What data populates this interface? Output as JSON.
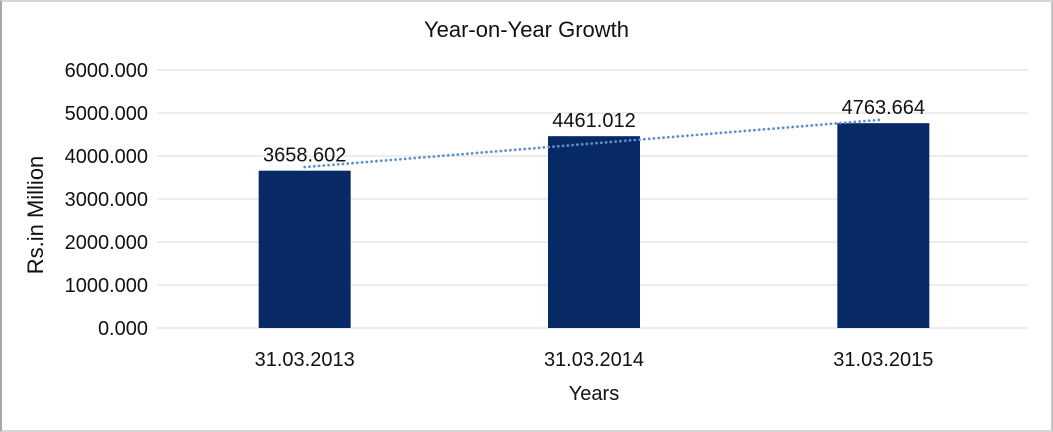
{
  "chart_data": {
    "type": "bar",
    "title": "Year-on-Year Growth",
    "xlabel": "Years",
    "ylabel": "Rs.in Million",
    "categories": [
      "31.03.2013",
      "31.03.2014",
      "31.03.2015"
    ],
    "values": [
      3658.602,
      4461.012,
      4763.664
    ],
    "data_labels": [
      "3658.602",
      "4461.012",
      "4763.664"
    ],
    "ylim": [
      0,
      6000
    ],
    "ytick_step": 1000,
    "ytick_labels": [
      "0.000",
      "1000.000",
      "2000.000",
      "3000.000",
      "4000.000",
      "5000.000",
      "6000.000"
    ],
    "grid": true,
    "legend": "none",
    "trendline": {
      "type": "linear",
      "style": "dotted"
    },
    "colors": {
      "bar": "#072a67",
      "trendline": "#5b8fd3",
      "gridline": "#d9d9d9",
      "text": "#111111"
    }
  }
}
